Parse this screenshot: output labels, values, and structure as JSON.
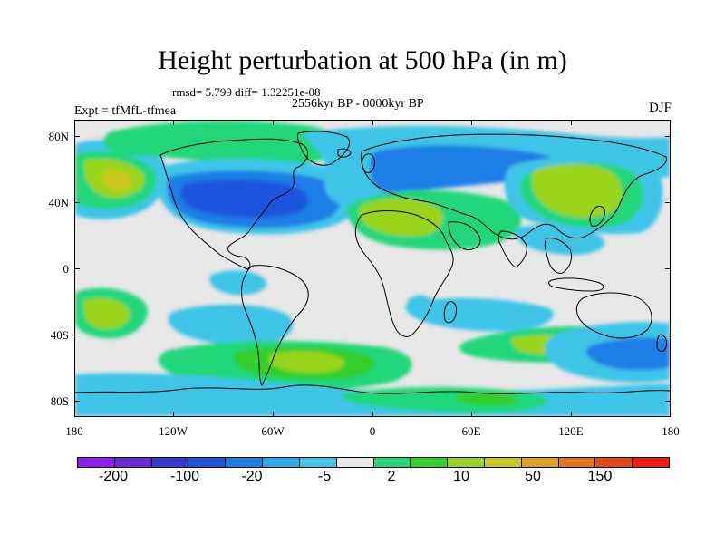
{
  "figure": {
    "title": "Height perturbation at 500 hPa (in m)",
    "stats_text": "rmsd= 5.799 diff= 1.32251e-08",
    "period_text": "2556kyr BP - 0000kyr BP",
    "experiment_text": "Expt = tfMfL-tfmea",
    "season_text": "DJF"
  },
  "map": {
    "lat_labels": [
      "80N",
      "40N",
      "0",
      "40S",
      "80S"
    ],
    "lon_labels": [
      "180",
      "120W",
      "60W",
      "0",
      "60E",
      "120E",
      "180"
    ],
    "background_color": "#e7e7e7",
    "coastline_color": "#000000"
  },
  "colorbar": {
    "labels": [
      "-200",
      "-100",
      "-20",
      "-5",
      "2",
      "10",
      "50",
      "150"
    ],
    "colors": [
      "#8f1ff0",
      "#6a2ad8",
      "#3b36d6",
      "#1f55dd",
      "#1c7ee6",
      "#29a8ea",
      "#3dc4e7",
      "#e7e7e7",
      "#21d67a",
      "#31cf2b",
      "#9ad41f",
      "#c8c81d",
      "#dba21b",
      "#e07718",
      "#e64b16",
      "#ee1e14"
    ]
  }
}
